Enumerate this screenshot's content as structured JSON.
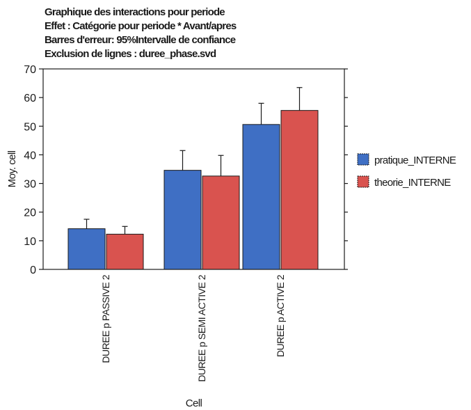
{
  "chart_data": {
    "type": "bar",
    "title_lines": [
      "Graphique des interactions pour periode",
      "Effet : Catégorie pour periode * Avant/apres",
      "Barres d'erreur: 95%Intervalle de confiance",
      "Exclusion de lignes : duree_phase.svd"
    ],
    "xlabel": "Cell",
    "ylabel": "Moy. cell",
    "ylim": [
      0,
      70
    ],
    "yticks": [
      0,
      10,
      20,
      30,
      40,
      50,
      60,
      70
    ],
    "categories": [
      "DUREE p PASSIVE 2",
      "DUREE p SEMI ACTIVE 2",
      "DUREE p ACTIVE 2"
    ],
    "series": [
      {
        "name": "pratique_INTERNE",
        "color": "#3f6fc4",
        "values": [
          14.2,
          34.6,
          50.6
        ],
        "error_upper": [
          17.5,
          41.5,
          58.0
        ]
      },
      {
        "name": "theorie_INTERNE",
        "color": "#d9534f",
        "values": [
          12.3,
          32.6,
          55.5
        ],
        "error_upper": [
          15.0,
          39.8,
          63.5
        ]
      }
    ],
    "legend_position": "right",
    "grid": false
  }
}
